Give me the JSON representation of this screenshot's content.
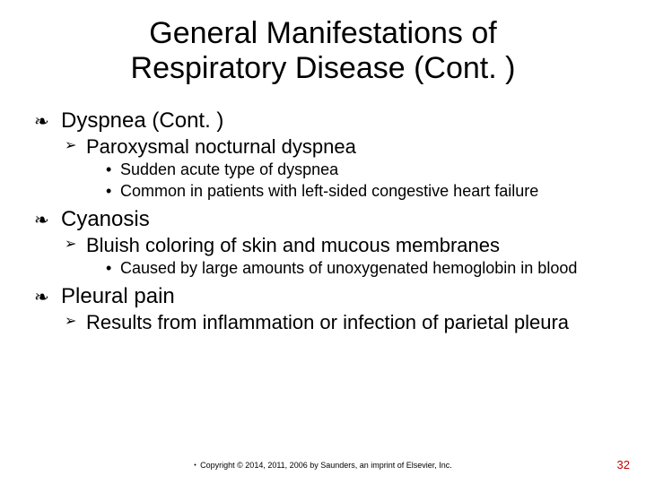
{
  "title_line1": "General Manifestations of",
  "title_line2": "Respiratory Disease (Cont. )",
  "items": {
    "dyspnea": {
      "label": "Dyspnea (Cont. )",
      "sub1": {
        "label": "Paroxysmal nocturnal dyspnea",
        "pt1": "Sudden acute type of dyspnea",
        "pt2": "Common in patients with left-sided congestive heart failure"
      }
    },
    "cyanosis": {
      "label": "Cyanosis",
      "sub1": {
        "label": "Bluish coloring of skin and mucous membranes",
        "pt1": "Caused by large amounts of unoxygenated hemoglobin in blood"
      }
    },
    "pleural": {
      "label": "Pleural pain",
      "sub1": {
        "label": "Results from inflammation or infection of parietal pleura"
      }
    }
  },
  "footer": "Copyright © 2014, 2011, 2006 by Saunders, an imprint of Elsevier, Inc.",
  "page_number": "32",
  "colors": {
    "text": "#000000",
    "background": "#ffffff",
    "page_number": "#c00000"
  },
  "fontsizes_pt": {
    "title": 34,
    "lvl1": 24,
    "lvl2": 22,
    "lvl3": 18,
    "footer": 9,
    "pagenum": 13
  }
}
